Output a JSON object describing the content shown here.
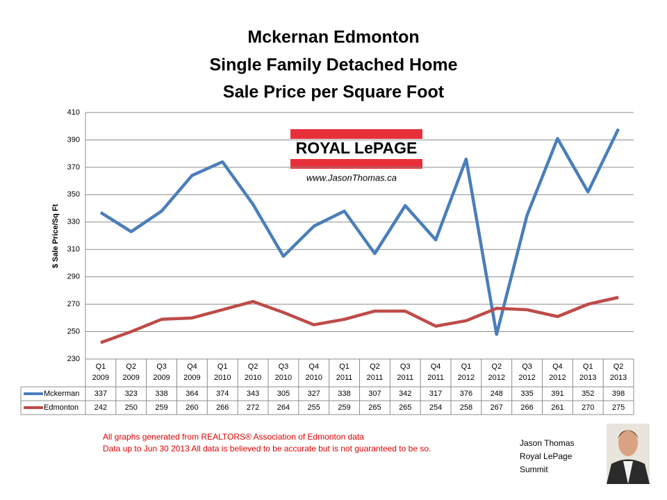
{
  "chart_data": {
    "type": "line",
    "title": [
      "Mckernan Edmonton",
      "Single Family Detached Home",
      "Sale Price per Square Foot"
    ],
    "y_label": "$ Sale Price/Sq Ft",
    "categories": [
      [
        "Q1",
        "2009"
      ],
      [
        "Q2",
        "2009"
      ],
      [
        "Q3",
        "2009"
      ],
      [
        "Q4",
        "2009"
      ],
      [
        "Q1",
        "2010"
      ],
      [
        "Q2",
        "2010"
      ],
      [
        "Q3",
        "2010"
      ],
      [
        "Q4",
        "2010"
      ],
      [
        "Q1",
        "2011"
      ],
      [
        "Q2",
        "2011"
      ],
      [
        "Q3",
        "2011"
      ],
      [
        "Q4",
        "2011"
      ],
      [
        "Q1",
        "2012"
      ],
      [
        "Q2",
        "2012"
      ],
      [
        "Q3",
        "2012"
      ],
      [
        "Q4",
        "2012"
      ],
      [
        "Q1",
        "2013"
      ],
      [
        "Q2",
        "2013"
      ]
    ],
    "series": [
      {
        "name": "Mckerman",
        "color": "#4a7ebb",
        "values": [
          337,
          323,
          338,
          364,
          374,
          343,
          305,
          327,
          338,
          307,
          342,
          317,
          376,
          248,
          335,
          391,
          352,
          398
        ]
      },
      {
        "name": "Edmonton",
        "color": "#be4b48",
        "values": [
          242,
          250,
          259,
          260,
          266,
          272,
          264,
          255,
          259,
          265,
          265,
          254,
          258,
          267,
          266,
          261,
          270,
          275
        ]
      }
    ],
    "ylim": [
      230,
      410
    ],
    "yticks": [
      230,
      250,
      270,
      290,
      310,
      330,
      350,
      370,
      390,
      410
    ],
    "grid": true,
    "logo": {
      "brand": "ROYAL LePAGE",
      "url": "www.JasonThomas.ca"
    },
    "footnote": [
      "All graphs generated from REALTORS® Association of Edmonton data",
      "Data up to  Jun 30 2013  All data is believed to be accurate but is not guaranteed to be so."
    ],
    "signature": [
      "Jason Thomas",
      "Royal LePage",
      "Summit"
    ]
  }
}
